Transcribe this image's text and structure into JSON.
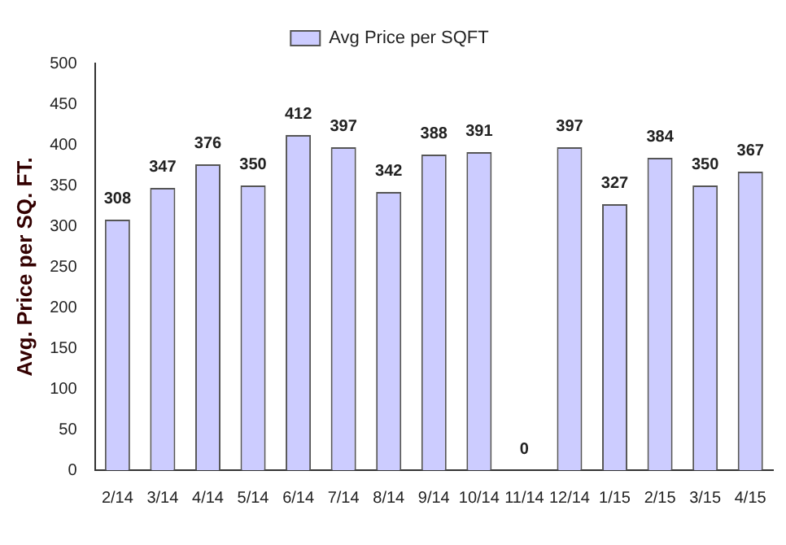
{
  "chart_data": {
    "type": "bar",
    "ylabel": "Avg. Price per SQ. FT.",
    "categories": [
      "2/14",
      "3/14",
      "4/14",
      "5/14",
      "6/14",
      "7/14",
      "8/14",
      "9/14",
      "10/14",
      "11/14",
      "12/14",
      "1/15",
      "2/15",
      "3/15",
      "4/15"
    ],
    "series": [
      {
        "name": "Avg Price per SQFT",
        "color": "#ccccff",
        "values": [
          308,
          347,
          376,
          350,
          412,
          397,
          342,
          388,
          391,
          0,
          397,
          327,
          384,
          350,
          367
        ]
      }
    ],
    "ylim": [
      0,
      500
    ],
    "yticks": [
      0,
      50,
      100,
      150,
      200,
      250,
      300,
      350,
      400,
      450,
      500
    ],
    "grid": false,
    "legend": "top",
    "data_labels": true
  }
}
